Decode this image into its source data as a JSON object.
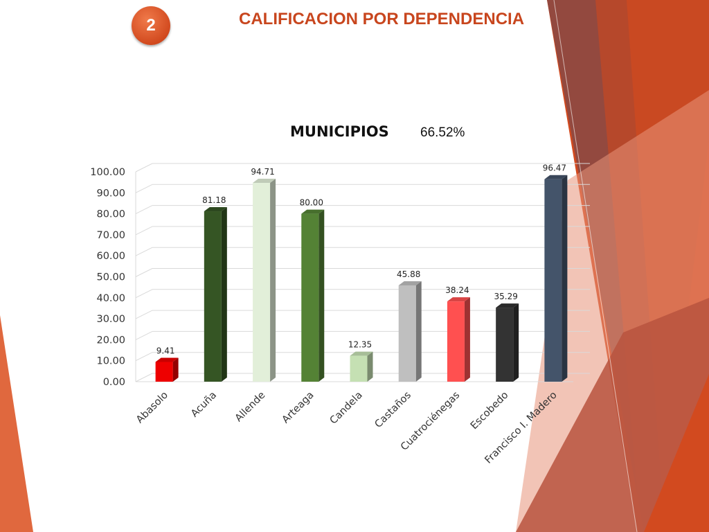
{
  "slide": {
    "number": "2",
    "title": "CALIFICACION POR DEPENDENCIA"
  },
  "chart_header": {
    "title": "MUNICIPIOS",
    "percentage": "66.52%"
  },
  "colors": {
    "accent": "#d24a1f",
    "title": "#c8461e"
  },
  "chart_data": {
    "type": "bar",
    "title": "MUNICIPIOS",
    "categories": [
      "Abasolo",
      "Acuña",
      "Allende",
      "Arteaga",
      "Candela",
      "Castaños",
      "Cuatrociénegas",
      "Escobedo",
      "Francisco I. Madero"
    ],
    "values": [
      9.41,
      81.18,
      94.71,
      80.0,
      12.35,
      45.88,
      38.24,
      35.29,
      96.47
    ],
    "value_labels": [
      "9.41",
      "81.18",
      "94.71",
      "80.00",
      "12.35",
      "45.88",
      "38.24",
      "35.29",
      "96.47"
    ],
    "bar_colors": [
      "#ee0000",
      "#355524",
      "#e2efd9",
      "#548235",
      "#c5e0b3",
      "#bfbfbf",
      "#ff5050",
      "#333333",
      "#44546a"
    ],
    "ylim": [
      0,
      100
    ],
    "yticks": [
      "0.00",
      "10.00",
      "20.00",
      "30.00",
      "40.00",
      "50.00",
      "60.00",
      "70.00",
      "80.00",
      "90.00",
      "100.00"
    ],
    "xlabel": "",
    "ylabel": "",
    "grid": true,
    "legend": "none",
    "style": "3d-bar"
  }
}
